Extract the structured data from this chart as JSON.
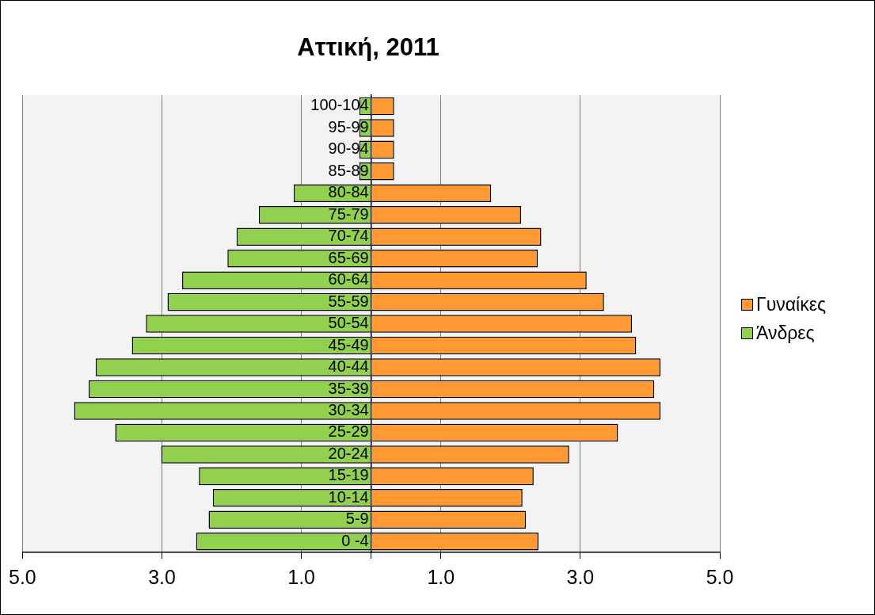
{
  "chart_data": {
    "type": "bar",
    "title": "Αττική, 2011",
    "orientation": "horizontal",
    "stacked": true,
    "categories": [
      "100-104",
      "95-99",
      "90-94",
      "85-89",
      "80-84",
      "75-79",
      "70-74",
      "65-69",
      "60-64",
      "55-59",
      "50-54",
      "45-49",
      "40-44",
      "35-39",
      "30-34",
      "25-29",
      "20-24",
      "15-19",
      "10-14",
      "5-9",
      "0 -4"
    ],
    "series": [
      {
        "name": "Γυναίκες",
        "color": "#ff9933",
        "values": [
          0.33,
          0.33,
          0.33,
          0.33,
          1.72,
          2.15,
          2.44,
          2.39,
          3.09,
          3.34,
          3.74,
          3.8,
          4.15,
          4.06,
          4.15,
          3.54,
          2.84,
          2.33,
          2.17,
          2.22,
          2.4
        ]
      },
      {
        "name": "Άνδρες",
        "color": "#92d050",
        "values": [
          -0.17,
          -0.17,
          -0.17,
          -0.17,
          -1.11,
          -1.61,
          -1.93,
          -2.06,
          -2.71,
          -2.92,
          -3.23,
          -3.43,
          -3.95,
          -4.05,
          -4.26,
          -3.67,
          -3.01,
          -2.47,
          -2.27,
          -2.33,
          -2.51
        ]
      }
    ],
    "xlim": [
      -5,
      5
    ],
    "xticks": [
      {
        "value": -5,
        "label": "5.0"
      },
      {
        "value": -3,
        "label": "3.0"
      },
      {
        "value": -1,
        "label": "1.0"
      },
      {
        "value": 0,
        "label": null
      },
      {
        "value": 1,
        "label": "1.0"
      },
      {
        "value": 3,
        "label": "3.0"
      },
      {
        "value": 5,
        "label": "5.0"
      }
    ],
    "grid": "x",
    "legend": "right"
  }
}
